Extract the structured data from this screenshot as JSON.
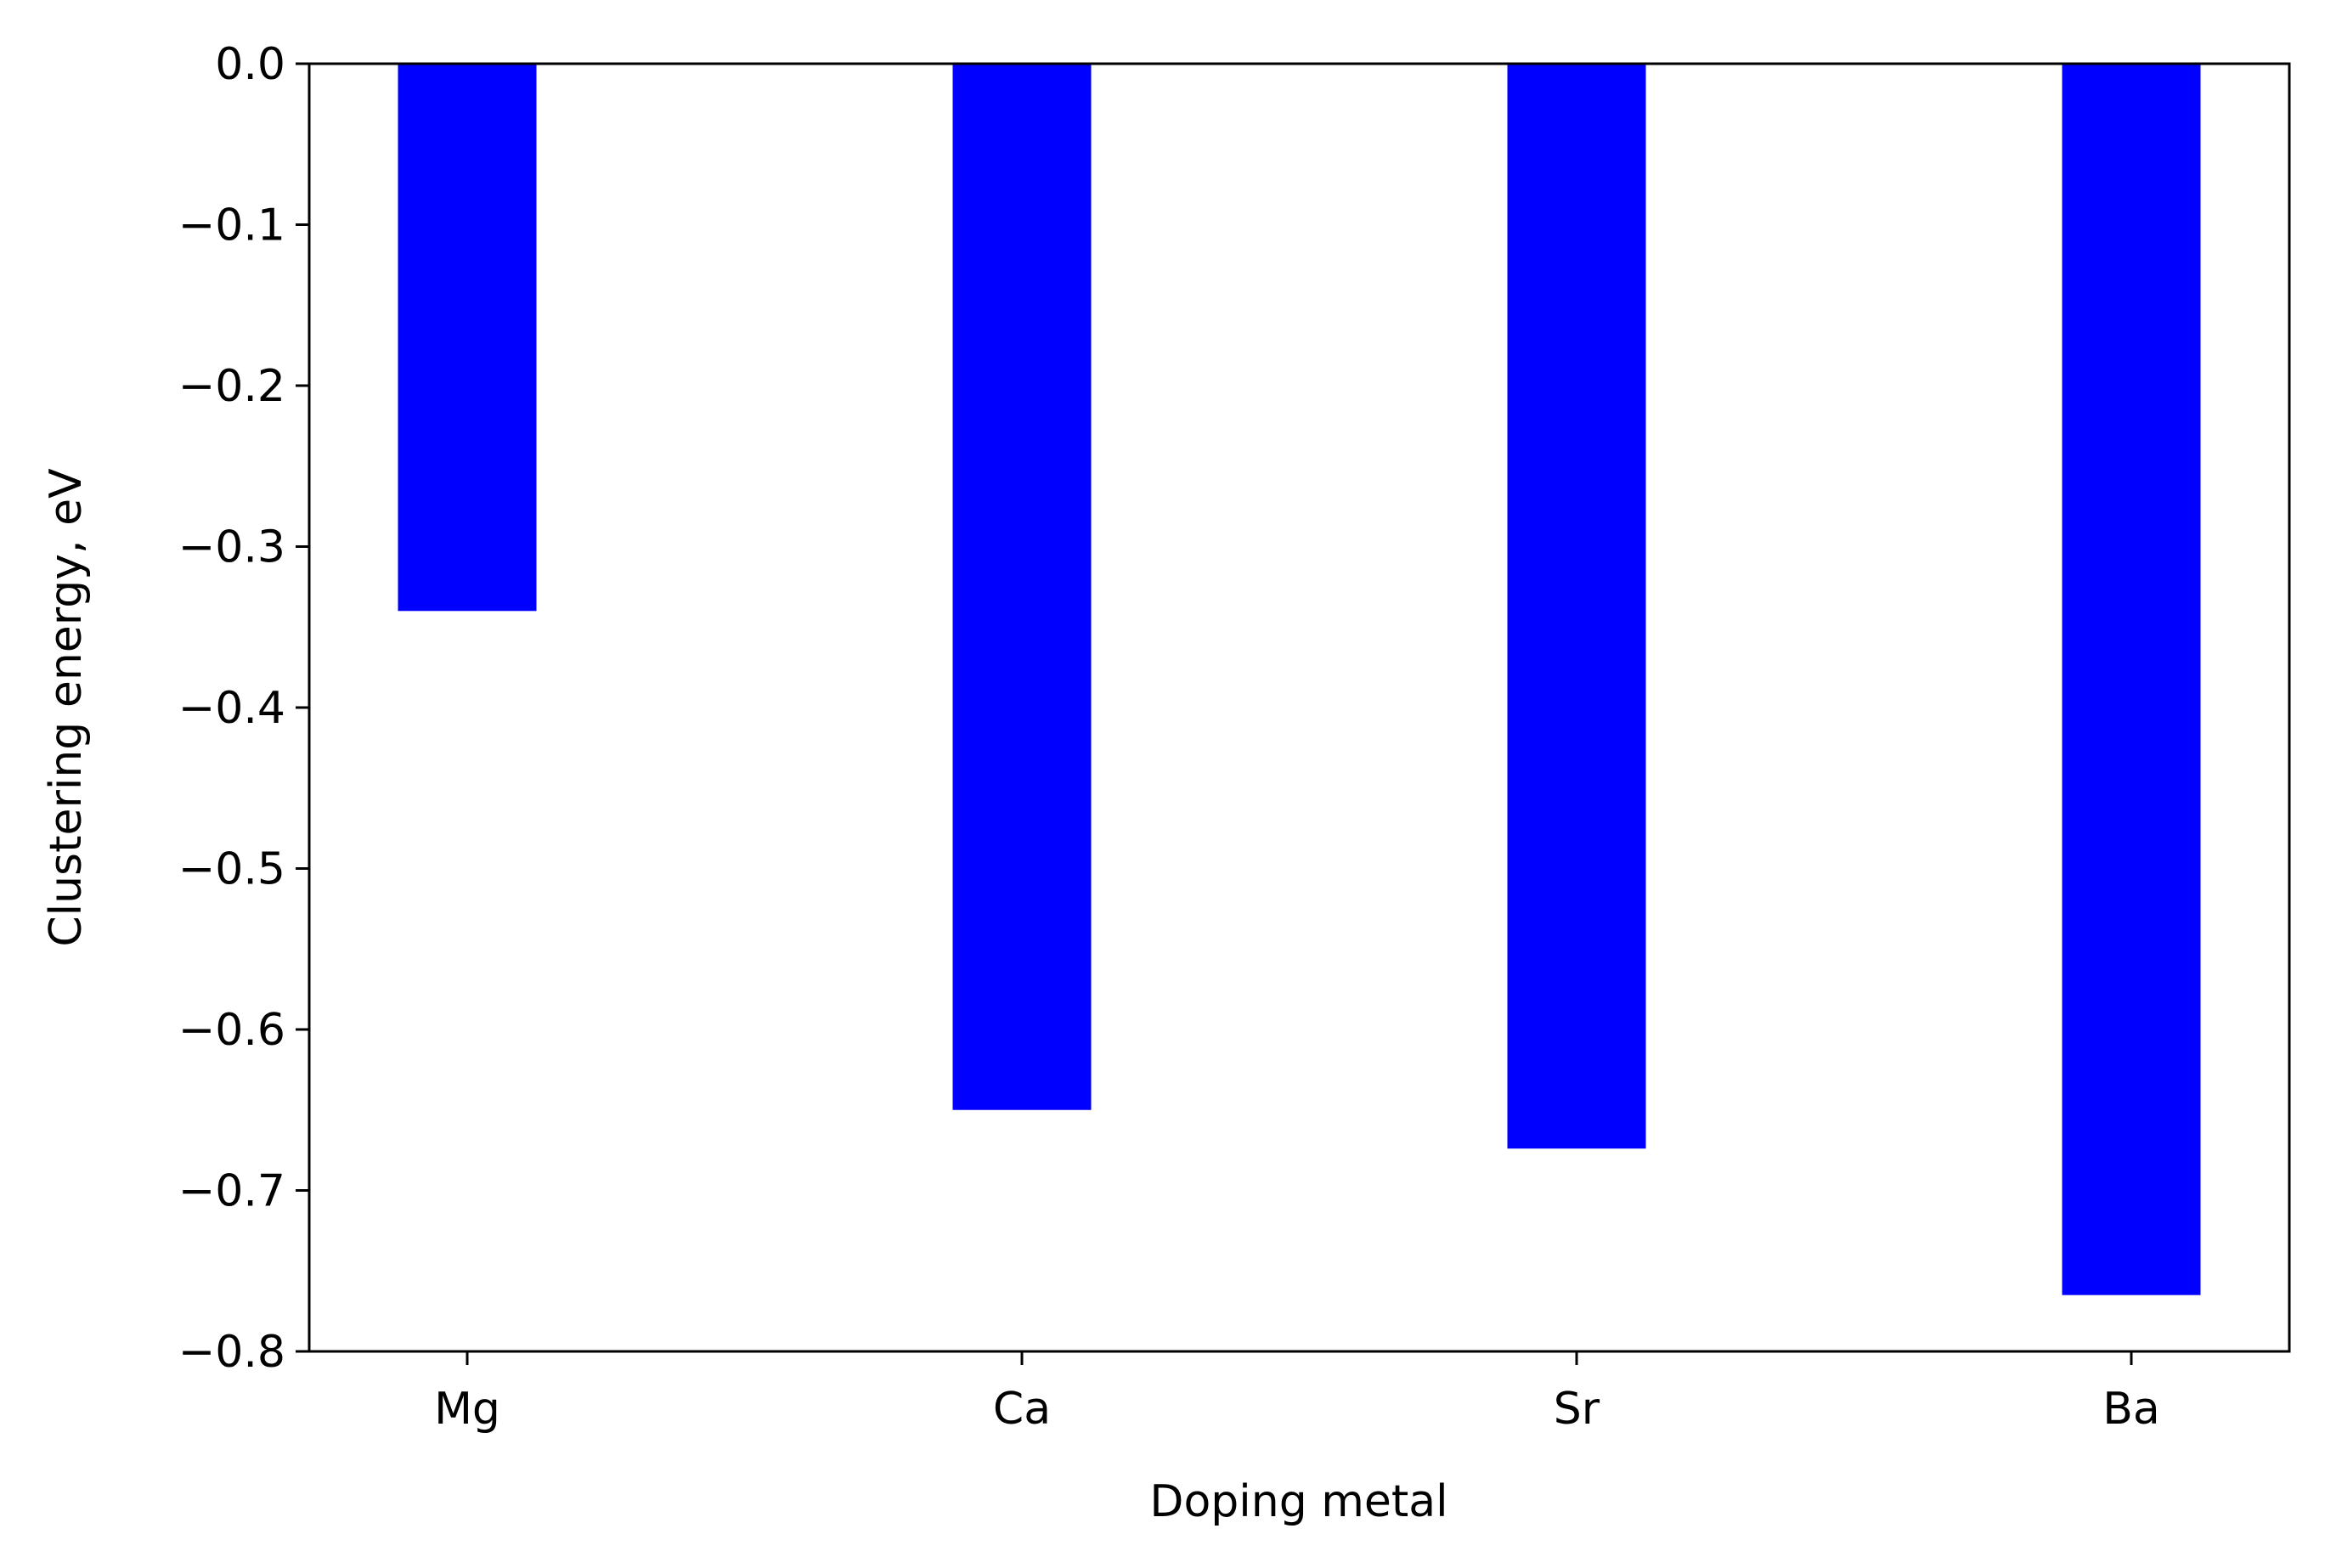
{
  "chart_data": {
    "type": "bar",
    "title": "",
    "xlabel": "Doping metal",
    "ylabel": "Clustering energy, eV",
    "categories": [
      "Mg",
      "Ca",
      "Sr",
      "Ba"
    ],
    "values": [
      -0.34,
      -0.65,
      -0.674,
      -0.765
    ],
    "ylim": [
      -0.8,
      0.0
    ],
    "yticks": [
      0.0,
      -0.1,
      -0.2,
      -0.3,
      -0.4,
      -0.5,
      -0.6,
      -0.7,
      -0.8
    ],
    "ytick_labels": [
      "0.0",
      "−0.1",
      "−0.2",
      "−0.3",
      "−0.4",
      "−0.5",
      "−0.6",
      "−0.7",
      "−0.8"
    ],
    "bar_color": "#0000ff",
    "grid": false,
    "legend": "none"
  }
}
